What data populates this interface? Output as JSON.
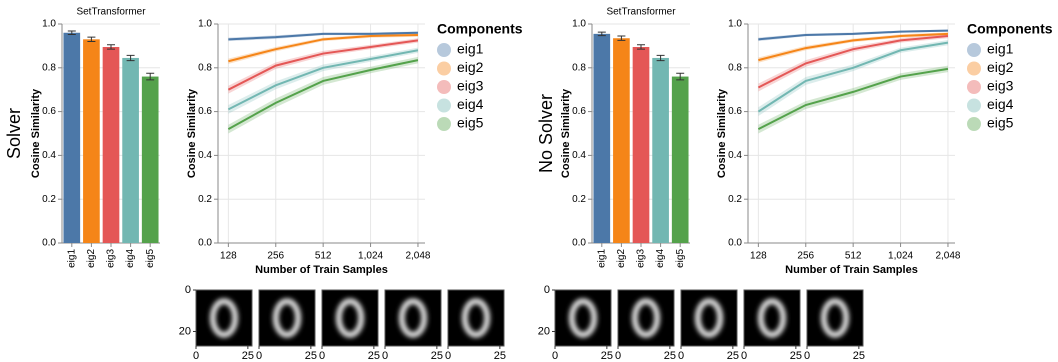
{
  "chart_data": [
    {
      "type": "bar",
      "title": "SetTransformer",
      "ylabel": "Cosine Similarity",
      "categories": [
        "eig1",
        "eig2",
        "eig3",
        "eig4",
        "eig5"
      ],
      "colors": [
        "#4c78a8",
        "#f58518",
        "#e45756",
        "#72b7b2",
        "#54a24b"
      ],
      "values": [
        0.96,
        0.93,
        0.895,
        0.845,
        0.76
      ],
      "errors": [
        0.008,
        0.01,
        0.01,
        0.012,
        0.015
      ],
      "ylim": [
        0,
        1
      ],
      "yticks": [
        {
          "value": 0,
          "label": "0.0"
        },
        {
          "value": 0.2,
          "label": "0.2"
        },
        {
          "value": 0.4,
          "label": "0.4"
        },
        {
          "value": 0.6,
          "label": "0.6"
        },
        {
          "value": 0.8,
          "label": "0.8"
        },
        {
          "value": 1,
          "label": "1.0"
        }
      ],
      "grid": true
    },
    {
      "type": "line",
      "xlabel": "Number of Train Samples",
      "ylabel": "Cosine Similarity",
      "legend_title": "Components",
      "x": [
        128,
        256,
        512,
        1024,
        2048
      ],
      "xscale": "log",
      "xlim": [
        110,
        2270
      ],
      "xticks": [
        128,
        256,
        512,
        {
          "value": 1024,
          "label": "1,024"
        },
        {
          "value": 2048,
          "label": "2,048"
        }
      ],
      "ylim": [
        0,
        1
      ],
      "yticks": [
        {
          "value": 0,
          "label": "0.0"
        },
        {
          "value": 0.2,
          "label": "0.2"
        },
        {
          "value": 0.4,
          "label": "0.4"
        },
        {
          "value": 0.6,
          "label": "0.6"
        },
        {
          "value": 0.8,
          "label": "0.8"
        },
        {
          "value": 1,
          "label": "1.0"
        }
      ],
      "grid": true,
      "series": [
        {
          "name": "eig1",
          "color": "#4c78a8",
          "values": [
            0.93,
            0.94,
            0.955,
            0.955,
            0.96
          ],
          "errors": [
            0.008,
            0.008,
            0.006,
            0.006,
            0.006
          ]
        },
        {
          "name": "eig2",
          "color": "#f58518",
          "values": [
            0.83,
            0.885,
            0.93,
            0.945,
            0.95
          ],
          "errors": [
            0.012,
            0.01,
            0.008,
            0.008,
            0.008
          ]
        },
        {
          "name": "eig3",
          "color": "#e45756",
          "values": [
            0.7,
            0.81,
            0.865,
            0.895,
            0.925
          ],
          "errors": [
            0.018,
            0.015,
            0.012,
            0.01,
            0.01
          ]
        },
        {
          "name": "eig4",
          "color": "#72b7b2",
          "values": [
            0.61,
            0.72,
            0.8,
            0.84,
            0.88
          ],
          "errors": [
            0.02,
            0.018,
            0.015,
            0.012,
            0.012
          ]
        },
        {
          "name": "eig5",
          "color": "#54a24b",
          "values": [
            0.52,
            0.64,
            0.74,
            0.79,
            0.835
          ],
          "errors": [
            0.02,
            0.02,
            0.018,
            0.015,
            0.015
          ]
        }
      ]
    },
    {
      "type": "bar",
      "title": "SetTransformer",
      "ylabel": "Cosine Similarity",
      "categories": [
        "eig1",
        "eig2",
        "eig3",
        "eig4",
        "eig5"
      ],
      "colors": [
        "#4c78a8",
        "#f58518",
        "#e45756",
        "#72b7b2",
        "#54a24b"
      ],
      "values": [
        0.955,
        0.935,
        0.895,
        0.845,
        0.76
      ],
      "errors": [
        0.008,
        0.01,
        0.01,
        0.012,
        0.015
      ],
      "ylim": [
        0,
        1
      ],
      "yticks": [
        {
          "value": 0,
          "label": "0.0"
        },
        {
          "value": 0.2,
          "label": "0.2"
        },
        {
          "value": 0.4,
          "label": "0.4"
        },
        {
          "value": 0.6,
          "label": "0.6"
        },
        {
          "value": 0.8,
          "label": "0.8"
        },
        {
          "value": 1,
          "label": "1.0"
        }
      ],
      "grid": true
    },
    {
      "type": "line",
      "xlabel": "Number of Train Samples",
      "ylabel": "Cosine Similarity",
      "legend_title": "Components",
      "x": [
        128,
        256,
        512,
        1024,
        2048
      ],
      "xscale": "log",
      "xlim": [
        110,
        2270
      ],
      "xticks": [
        128,
        256,
        512,
        {
          "value": 1024,
          "label": "1,024"
        },
        {
          "value": 2048,
          "label": "2,048"
        }
      ],
      "ylim": [
        0,
        1
      ],
      "yticks": [
        {
          "value": 0,
          "label": "0.0"
        },
        {
          "value": 0.2,
          "label": "0.2"
        },
        {
          "value": 0.4,
          "label": "0.4"
        },
        {
          "value": 0.6,
          "label": "0.6"
        },
        {
          "value": 0.8,
          "label": "0.8"
        },
        {
          "value": 1,
          "label": "1.0"
        }
      ],
      "grid": true,
      "series": [
        {
          "name": "eig1",
          "color": "#4c78a8",
          "values": [
            0.93,
            0.95,
            0.955,
            0.965,
            0.97
          ],
          "errors": [
            0.008,
            0.006,
            0.006,
            0.005,
            0.005
          ]
        },
        {
          "name": "eig2",
          "color": "#f58518",
          "values": [
            0.835,
            0.89,
            0.925,
            0.945,
            0.955
          ],
          "errors": [
            0.012,
            0.01,
            0.008,
            0.008,
            0.007
          ]
        },
        {
          "name": "eig3",
          "color": "#e45756",
          "values": [
            0.71,
            0.82,
            0.885,
            0.925,
            0.945
          ],
          "errors": [
            0.018,
            0.015,
            0.012,
            0.01,
            0.01
          ]
        },
        {
          "name": "eig4",
          "color": "#72b7b2",
          "values": [
            0.6,
            0.74,
            0.8,
            0.88,
            0.915
          ],
          "errors": [
            0.02,
            0.018,
            0.015,
            0.012,
            0.012
          ]
        },
        {
          "name": "eig5",
          "color": "#54a24b",
          "values": [
            0.52,
            0.63,
            0.69,
            0.76,
            0.795
          ],
          "errors": [
            0.02,
            0.018,
            0.018,
            0.015,
            0.015
          ]
        }
      ]
    }
  ],
  "panels": [
    {
      "label": "Solver",
      "thumbnails": {
        "xlim": [
          0,
          27
        ],
        "ylim": [
          0,
          27
        ],
        "xticks": [
          0,
          25
        ],
        "yticks": [
          0,
          20
        ]
      }
    },
    {
      "label": "No Solver",
      "thumbnails": {
        "xlim": [
          0,
          27
        ],
        "ylim": [
          0,
          27
        ],
        "xticks": [
          0,
          25
        ],
        "yticks": [
          0,
          20
        ]
      }
    }
  ]
}
